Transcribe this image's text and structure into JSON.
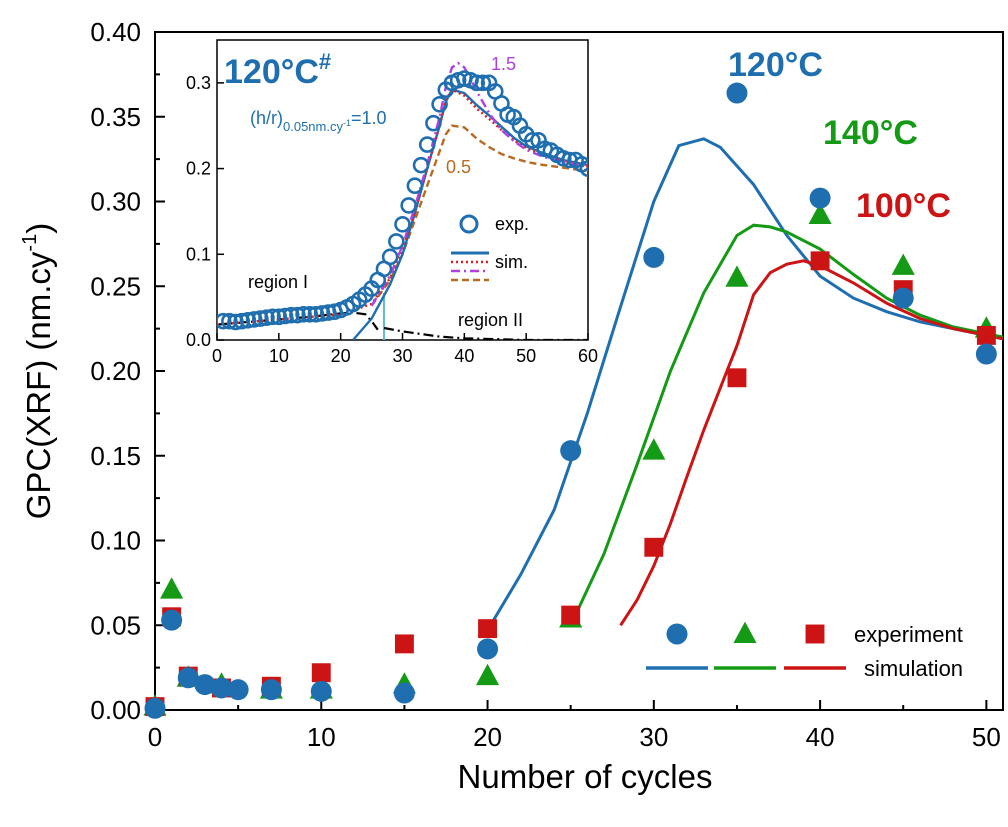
{
  "colors": {
    "c120": "#1f6fb0",
    "c140": "#159a15",
    "c100": "#cc1414",
    "inset_purple": "#b040e0",
    "inset_red": "#dd2020",
    "inset_brown": "#b86a20",
    "inset_black": "#000000",
    "inset_cyan": "#5bbcd6"
  },
  "chart_data": [
    {
      "type": "scatter",
      "title": "",
      "xlabel": "Number of cycles",
      "ylabel": "GPC(XRF) (nm.cy",
      "ylabel_sup": "-1",
      "ylabel_end": ")",
      "xlim": [
        0,
        51
      ],
      "ylim": [
        0,
        0.4
      ],
      "xticks": [
        0,
        10,
        20,
        30,
        40,
        50
      ],
      "xtick_labels": [
        "0",
        "10",
        "20",
        "30",
        "40",
        "50"
      ],
      "yticks": [
        0,
        0.05,
        0.1,
        0.15,
        0.2,
        0.25,
        0.3,
        0.35,
        0.4
      ],
      "ytick_labels": [
        "0.00",
        "0.05",
        "0.10",
        "0.15",
        "0.20",
        "0.25",
        "0.30",
        "0.35",
        "0.40"
      ],
      "grid": false,
      "legend": {
        "placement": "bottom-right",
        "experiment_label": "experiment",
        "simulation_label": "simulation"
      },
      "annotations": [
        {
          "text": "120°C",
          "series": "120C"
        },
        {
          "text": "140°C",
          "series": "140C"
        },
        {
          "text": "100°C",
          "series": "100C"
        }
      ],
      "series": [
        {
          "key": "120C",
          "marker": "circle",
          "color": "#1f6fb0",
          "experiment": {
            "x": [
              0,
              1,
              2,
              3,
              4,
              5,
              7,
              10,
              15,
              20,
              25,
              30,
              35,
              40,
              45,
              50
            ],
            "y": [
              0.001,
              0.053,
              0.019,
              0.015,
              0.013,
              0.012,
              0.012,
              0.011,
              0.01,
              0.036,
              0.153,
              0.267,
              0.364,
              0.302,
              0.243,
              0.21
            ]
          },
          "simulation": {
            "x": [
              20,
              22,
              24,
              26,
              28,
              30,
              31.5,
              33,
              34,
              36,
              38,
              40,
              42,
              44,
              46,
              48,
              50,
              51
            ],
            "y": [
              0.047,
              0.08,
              0.118,
              0.175,
              0.238,
              0.3,
              0.333,
              0.337,
              0.332,
              0.31,
              0.28,
              0.256,
              0.243,
              0.235,
              0.229,
              0.225,
              0.221,
              0.219
            ]
          }
        },
        {
          "key": "140C",
          "marker": "triangle",
          "color": "#159a15",
          "experiment": {
            "x": [
              0,
              1,
              2,
              4,
              7,
              10,
              15,
              20,
              25,
              30,
              35,
              40,
              45,
              50
            ],
            "y": [
              0.002,
              0.071,
              0.019,
              0.015,
              0.012,
              0.012,
              0.015,
              0.02,
              0.054,
              0.153,
              0.255,
              0.292,
              0.262,
              0.225
            ]
          },
          "simulation": {
            "x": [
              25,
              27,
              29,
              31,
              33,
              35,
              36,
              37,
              38,
              40,
              42,
              44,
              46,
              48,
              50,
              51
            ],
            "y": [
              0.05,
              0.092,
              0.145,
              0.2,
              0.246,
              0.28,
              0.286,
              0.285,
              0.282,
              0.272,
              0.257,
              0.243,
              0.233,
              0.226,
              0.222,
              0.22
            ]
          }
        },
        {
          "key": "100C",
          "marker": "square",
          "color": "#cc1414",
          "experiment": {
            "x": [
              0,
              1,
              2,
              4,
              7,
              10,
              15,
              20,
              25,
              30,
              35,
              40,
              45,
              50
            ],
            "y": [
              0.002,
              0.055,
              0.02,
              0.013,
              0.014,
              0.022,
              0.039,
              0.048,
              0.056,
              0.096,
              0.196,
              0.265,
              0.248,
              0.221
            ]
          },
          "simulation": {
            "x": [
              28,
              29,
              30,
              31,
              32,
              33,
              34,
              35,
              36,
              37,
              38,
              39,
              40,
              42,
              44,
              46,
              48,
              50,
              51
            ],
            "y": [
              0.05,
              0.065,
              0.085,
              0.11,
              0.138,
              0.165,
              0.19,
              0.215,
              0.245,
              0.258,
              0.263,
              0.265,
              0.262,
              0.252,
              0.24,
              0.231,
              0.225,
              0.221,
              0.219
            ]
          }
        }
      ]
    },
    {
      "type": "scatter",
      "title": "120°C",
      "title_sup": "#",
      "xlim": [
        0,
        60
      ],
      "ylim": [
        0,
        0.35
      ],
      "xticks": [
        0,
        10,
        20,
        30,
        40,
        50,
        60
      ],
      "xtick_labels": [
        "0",
        "10",
        "20",
        "30",
        "40",
        "50",
        "60"
      ],
      "yticks": [
        0,
        0.1,
        0.2,
        0.3
      ],
      "ytick_labels": [
        "0.0",
        "0.1",
        "0.2",
        "0.3"
      ],
      "grid": false,
      "annotations": {
        "hr_prefix": "(h/r)",
        "hr_sub": "0.05nm.cy",
        "hr_subsup": "-1",
        "hr_value": "=1.0",
        "label_hi": "1.5",
        "label_lo": "0.5",
        "region1": "region I",
        "region2": "region II"
      },
      "legend": {
        "placement": "middle-right",
        "exp_label": "exp.",
        "sim_label": "sim."
      },
      "experiment": {
        "x": [
          1,
          2,
          3,
          4,
          5,
          6,
          7,
          8,
          9,
          10,
          11,
          12,
          13,
          14,
          15,
          16,
          17,
          18,
          19,
          20,
          21,
          22,
          23,
          24,
          25,
          26,
          27,
          28,
          29,
          30,
          31,
          32,
          33,
          34,
          35,
          36,
          37,
          38,
          39,
          40,
          41,
          42,
          43,
          44,
          45,
          46,
          47,
          48,
          49,
          50,
          51,
          52,
          53,
          54,
          55,
          56,
          57,
          58,
          59,
          60
        ],
        "y": [
          0.022,
          0.022,
          0.021,
          0.022,
          0.023,
          0.024,
          0.025,
          0.026,
          0.027,
          0.027,
          0.028,
          0.029,
          0.029,
          0.03,
          0.03,
          0.03,
          0.031,
          0.032,
          0.033,
          0.035,
          0.038,
          0.042,
          0.047,
          0.053,
          0.06,
          0.07,
          0.083,
          0.097,
          0.115,
          0.135,
          0.157,
          0.18,
          0.204,
          0.228,
          0.253,
          0.275,
          0.292,
          0.3,
          0.303,
          0.305,
          0.303,
          0.3,
          0.3,
          0.3,
          0.29,
          0.276,
          0.263,
          0.26,
          0.25,
          0.24,
          0.233,
          0.233,
          0.223,
          0.221,
          0.216,
          0.212,
          0.21,
          0.21,
          0.205,
          0.2
        ]
      },
      "sim_hr10": {
        "color": "#dd2020",
        "x": [
          0,
          5,
          10,
          15,
          20,
          25,
          28,
          30,
          32,
          34,
          36,
          37,
          38,
          40,
          42,
          44,
          46,
          48,
          50,
          52,
          54,
          56,
          58,
          60
        ],
        "y": [
          0.018,
          0.021,
          0.024,
          0.027,
          0.03,
          0.042,
          0.072,
          0.107,
          0.15,
          0.2,
          0.25,
          0.28,
          0.292,
          0.285,
          0.27,
          0.258,
          0.245,
          0.233,
          0.224,
          0.218,
          0.213,
          0.209,
          0.206,
          0.203
        ]
      },
      "sim_hr10_blue": {
        "color": "#1f6fb0",
        "x": [
          22,
          25,
          28,
          30,
          32,
          34,
          36,
          37,
          38,
          40,
          42,
          44,
          46,
          48,
          50,
          52,
          54,
          56,
          58,
          60
        ],
        "y": [
          0,
          0.025,
          0.065,
          0.1,
          0.148,
          0.2,
          0.25,
          0.278,
          0.292,
          0.288,
          0.274,
          0.262,
          0.249,
          0.236,
          0.226,
          0.22,
          0.215,
          0.21,
          0.207,
          0.204
        ]
      },
      "sim_hr15": {
        "color": "#b040e0",
        "x": [
          25,
          28,
          30,
          32,
          34,
          36,
          37,
          38,
          39,
          40,
          41,
          42,
          44,
          46,
          48,
          50,
          52,
          54,
          56,
          58,
          60
        ],
        "y": [
          0.04,
          0.075,
          0.11,
          0.155,
          0.205,
          0.26,
          0.295,
          0.318,
          0.323,
          0.318,
          0.305,
          0.29,
          0.265,
          0.245,
          0.232,
          0.222,
          0.216,
          0.211,
          0.208,
          0.205,
          0.202
        ]
      },
      "sim_hr05": {
        "color": "#b86a20",
        "x": [
          25,
          28,
          30,
          32,
          34,
          36,
          37,
          38,
          40,
          42,
          44,
          46,
          48,
          50,
          52,
          54,
          56,
          58,
          60
        ],
        "y": [
          0.04,
          0.07,
          0.1,
          0.14,
          0.18,
          0.22,
          0.24,
          0.25,
          0.248,
          0.235,
          0.225,
          0.217,
          0.212,
          0.208,
          0.205,
          0.203,
          0.201,
          0.199,
          0.198
        ]
      },
      "region1_curve": {
        "color": "#000000",
        "x": [
          0,
          5,
          10,
          15,
          20,
          22,
          24,
          25,
          26
        ],
        "y": [
          0.018,
          0.021,
          0.024,
          0.027,
          0.031,
          0.032,
          0.03,
          0.022,
          0.012
        ]
      },
      "region2_curve": {
        "color": "#000000",
        "x": [
          27,
          30,
          33,
          36,
          40,
          45,
          50,
          55,
          60
        ],
        "y": [
          0.014,
          0.01,
          0.007,
          0.004,
          0.002,
          0.001,
          0,
          0,
          0
        ]
      },
      "divider_x": 27
    }
  ]
}
